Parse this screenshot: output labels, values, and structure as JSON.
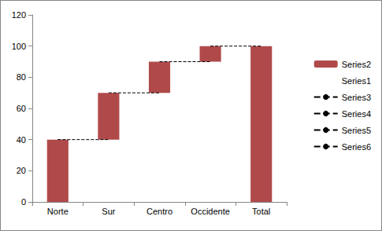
{
  "chart_data": {
    "type": "bar",
    "stacked": true,
    "categories": [
      "Norte",
      "Sur",
      "Centro",
      "Occidente",
      "Total"
    ],
    "series": [
      {
        "name": "Series2",
        "type": "bar",
        "color": "#b04a4a",
        "values": [
          40,
          30,
          20,
          10,
          100
        ]
      },
      {
        "name": "Series1",
        "type": "bar",
        "color": "transparent",
        "values": [
          0,
          40,
          70,
          90,
          0
        ]
      },
      {
        "name": "Series3",
        "type": "line",
        "line_style": "dashed",
        "color": "#000000",
        "values": [
          40,
          40,
          null,
          null,
          null
        ]
      },
      {
        "name": "Series4",
        "type": "line",
        "line_style": "dashed",
        "color": "#000000",
        "values": [
          null,
          70,
          70,
          null,
          null
        ]
      },
      {
        "name": "Series5",
        "type": "line",
        "line_style": "dashed",
        "color": "#000000",
        "values": [
          null,
          null,
          90,
          90,
          null
        ]
      },
      {
        "name": "Series6",
        "type": "line",
        "line_style": "dashed",
        "color": "#000000",
        "values": [
          null,
          null,
          null,
          100,
          100
        ]
      }
    ],
    "ylim": [
      0,
      120
    ],
    "yticks": [
      0,
      20,
      40,
      60,
      80,
      100,
      120
    ],
    "grid": false,
    "legend": "right"
  }
}
